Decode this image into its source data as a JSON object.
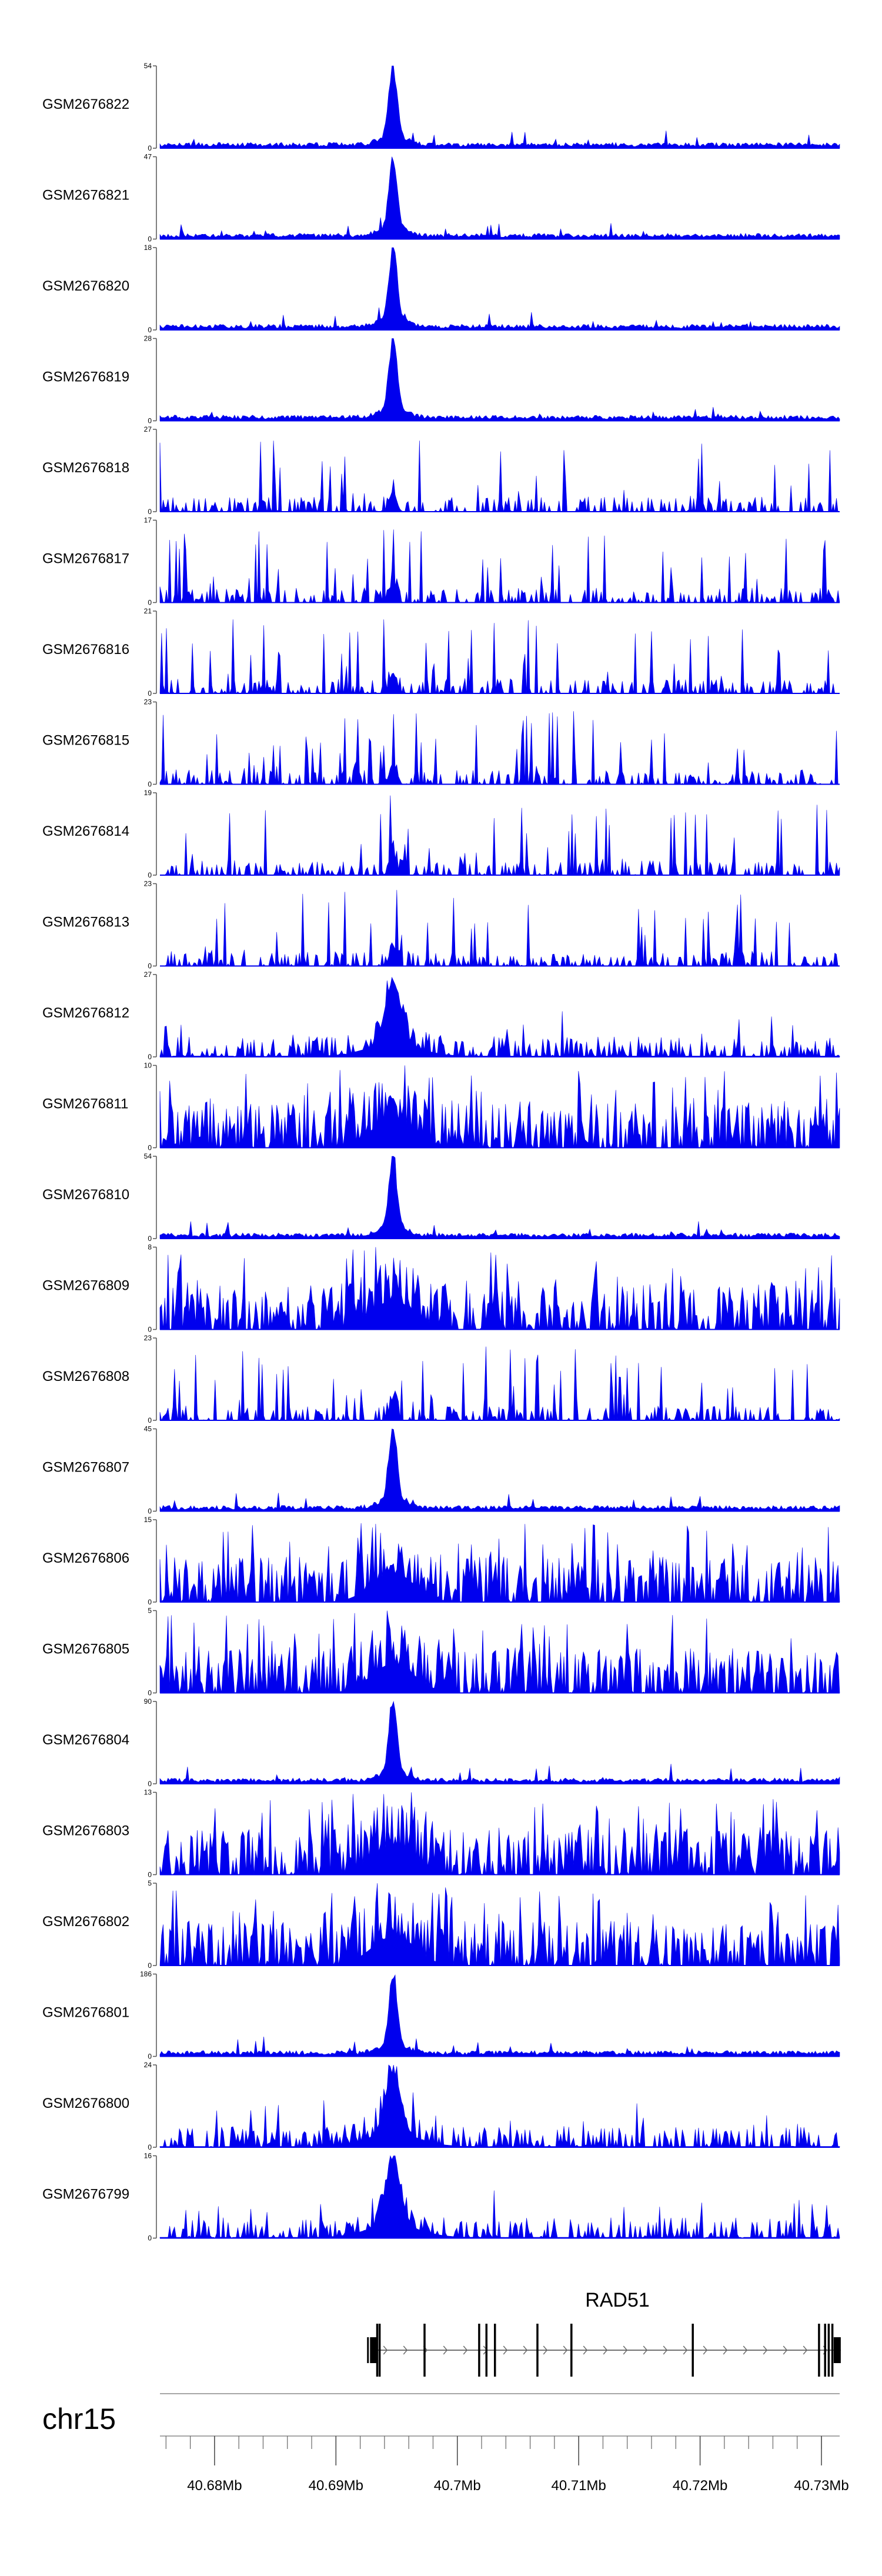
{
  "chart_data": {
    "type": "area",
    "chromosome": "chr15",
    "x_unit": "Mb",
    "xlim": [
      40.6755,
      40.7315
    ],
    "x_ticks": [
      40.68,
      40.69,
      40.7,
      40.71,
      40.72,
      40.73
    ],
    "x_tick_labels": [
      "40.68Mb",
      "40.69Mb",
      "40.7Mb",
      "40.71Mb",
      "40.72Mb",
      "40.73Mb"
    ],
    "minor_tick_step": 0.002,
    "series_color": "#0000ee",
    "peak_center": 40.6947,
    "tracks": [
      {
        "name": "GSM2676822",
        "ymax": 54,
        "ymin_label": "0",
        "ymax_label": "54",
        "pattern": "peak"
      },
      {
        "name": "GSM2676821",
        "ymax": 47,
        "ymin_label": "0",
        "ymax_label": "47",
        "pattern": "peak"
      },
      {
        "name": "GSM2676820",
        "ymax": 18,
        "ymin_label": "0",
        "ymax_label": "18",
        "pattern": "peak"
      },
      {
        "name": "GSM2676819",
        "ymax": 28,
        "ymin_label": "0",
        "ymax_label": "28",
        "pattern": "peak"
      },
      {
        "name": "GSM2676818",
        "ymax": 27,
        "ymin_label": "0",
        "ymax_label": "27",
        "pattern": "sparse"
      },
      {
        "name": "GSM2676817",
        "ymax": 17,
        "ymin_label": "0",
        "ymax_label": "17",
        "pattern": "sparse"
      },
      {
        "name": "GSM2676816",
        "ymax": 21,
        "ymin_label": "0",
        "ymax_label": "21",
        "pattern": "sparse"
      },
      {
        "name": "GSM2676815",
        "ymax": 23,
        "ymin_label": "0",
        "ymax_label": "23",
        "pattern": "sparse"
      },
      {
        "name": "GSM2676814",
        "ymax": 19,
        "ymin_label": "0",
        "ymax_label": "19",
        "pattern": "sparse"
      },
      {
        "name": "GSM2676813",
        "ymax": 23,
        "ymin_label": "0",
        "ymax_label": "23",
        "pattern": "sparse"
      },
      {
        "name": "GSM2676812",
        "ymax": 27,
        "ymin_label": "0",
        "ymax_label": "27",
        "pattern": "mixed"
      },
      {
        "name": "GSM2676811",
        "ymax": 10,
        "ymin_label": "0",
        "ymax_label": "10",
        "pattern": "dense"
      },
      {
        "name": "GSM2676810",
        "ymax": 54,
        "ymin_label": "0",
        "ymax_label": "54",
        "pattern": "peak"
      },
      {
        "name": "GSM2676809",
        "ymax": 8,
        "ymin_label": "0",
        "ymax_label": "8",
        "pattern": "dense"
      },
      {
        "name": "GSM2676808",
        "ymax": 23,
        "ymin_label": "0",
        "ymax_label": "23",
        "pattern": "sparse"
      },
      {
        "name": "GSM2676807",
        "ymax": 45,
        "ymin_label": "0",
        "ymax_label": "45",
        "pattern": "peak"
      },
      {
        "name": "GSM2676806",
        "ymax": 15,
        "ymin_label": "0",
        "ymax_label": "15",
        "pattern": "dense"
      },
      {
        "name": "GSM2676805",
        "ymax": 5,
        "ymin_label": "0",
        "ymax_label": "5",
        "pattern": "dense"
      },
      {
        "name": "GSM2676804",
        "ymax": 90,
        "ymin_label": "0",
        "ymax_label": "90",
        "pattern": "peak"
      },
      {
        "name": "GSM2676803",
        "ymax": 13,
        "ymin_label": "0",
        "ymax_label": "13",
        "pattern": "dense"
      },
      {
        "name": "GSM2676802",
        "ymax": 5,
        "ymin_label": "0",
        "ymax_label": "5",
        "pattern": "dense"
      },
      {
        "name": "GSM2676801",
        "ymax": 186,
        "ymin_label": "0",
        "ymax_label": "186",
        "pattern": "peak"
      },
      {
        "name": "GSM2676800",
        "ymax": 24,
        "ymin_label": "0",
        "ymax_label": "24",
        "pattern": "mixed"
      },
      {
        "name": "GSM2676799",
        "ymax": 16,
        "ymin_label": "0",
        "ymax_label": "16",
        "pattern": "mixed"
      }
    ],
    "gene": {
      "name": "RAD51",
      "start": 40.693,
      "end": 40.7316,
      "strand": "+",
      "exons": [
        40.6931,
        40.6934,
        40.6936,
        40.6973,
        40.7018,
        40.7024,
        40.7031,
        40.7066,
        40.7094,
        40.7194,
        40.7298,
        40.7303,
        40.7306,
        40.7309,
        40.7313
      ]
    }
  }
}
